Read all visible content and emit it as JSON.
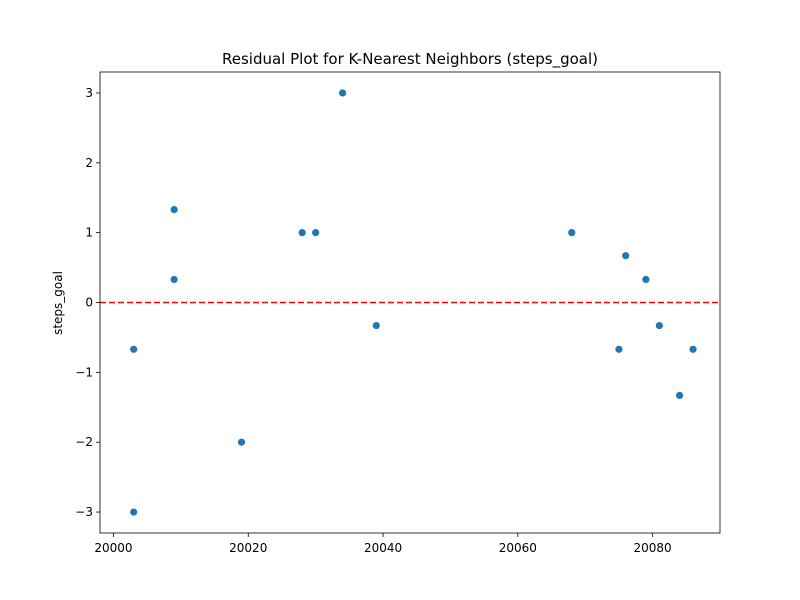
{
  "chart_data": {
    "type": "scatter",
    "title": "Residual Plot for K-Nearest Neighbors (steps_goal)",
    "xlabel": "",
    "ylabel": "steps_goal",
    "xlim": [
      19998,
      20090
    ],
    "ylim": [
      -3.3,
      3.3
    ],
    "xticks": [
      20000,
      20020,
      20040,
      20060,
      20080
    ],
    "yticks": [
      -3,
      -2,
      -1,
      0,
      1,
      2,
      3
    ],
    "ytick_labels": [
      "−3",
      "−2",
      "−1",
      "0",
      "1",
      "2",
      "3"
    ],
    "grid": false,
    "legend": "none",
    "marker_color": "#1f77b4",
    "reference_line": {
      "y": 0,
      "color": "#ff0000",
      "style": "dashed"
    },
    "points": [
      {
        "x": 20003,
        "y": -0.67
      },
      {
        "x": 20003,
        "y": -3.0
      },
      {
        "x": 20009,
        "y": 1.33
      },
      {
        "x": 20009,
        "y": 0.33
      },
      {
        "x": 20019,
        "y": -2.0
      },
      {
        "x": 20028,
        "y": 1.0
      },
      {
        "x": 20030,
        "y": 1.0
      },
      {
        "x": 20034,
        "y": 3.0
      },
      {
        "x": 20039,
        "y": -0.33
      },
      {
        "x": 20068,
        "y": 1.0
      },
      {
        "x": 20075,
        "y": -0.67
      },
      {
        "x": 20076,
        "y": 0.67
      },
      {
        "x": 20079,
        "y": 0.33
      },
      {
        "x": 20081,
        "y": -0.33
      },
      {
        "x": 20084,
        "y": -1.33
      },
      {
        "x": 20086,
        "y": -0.67
      }
    ]
  }
}
